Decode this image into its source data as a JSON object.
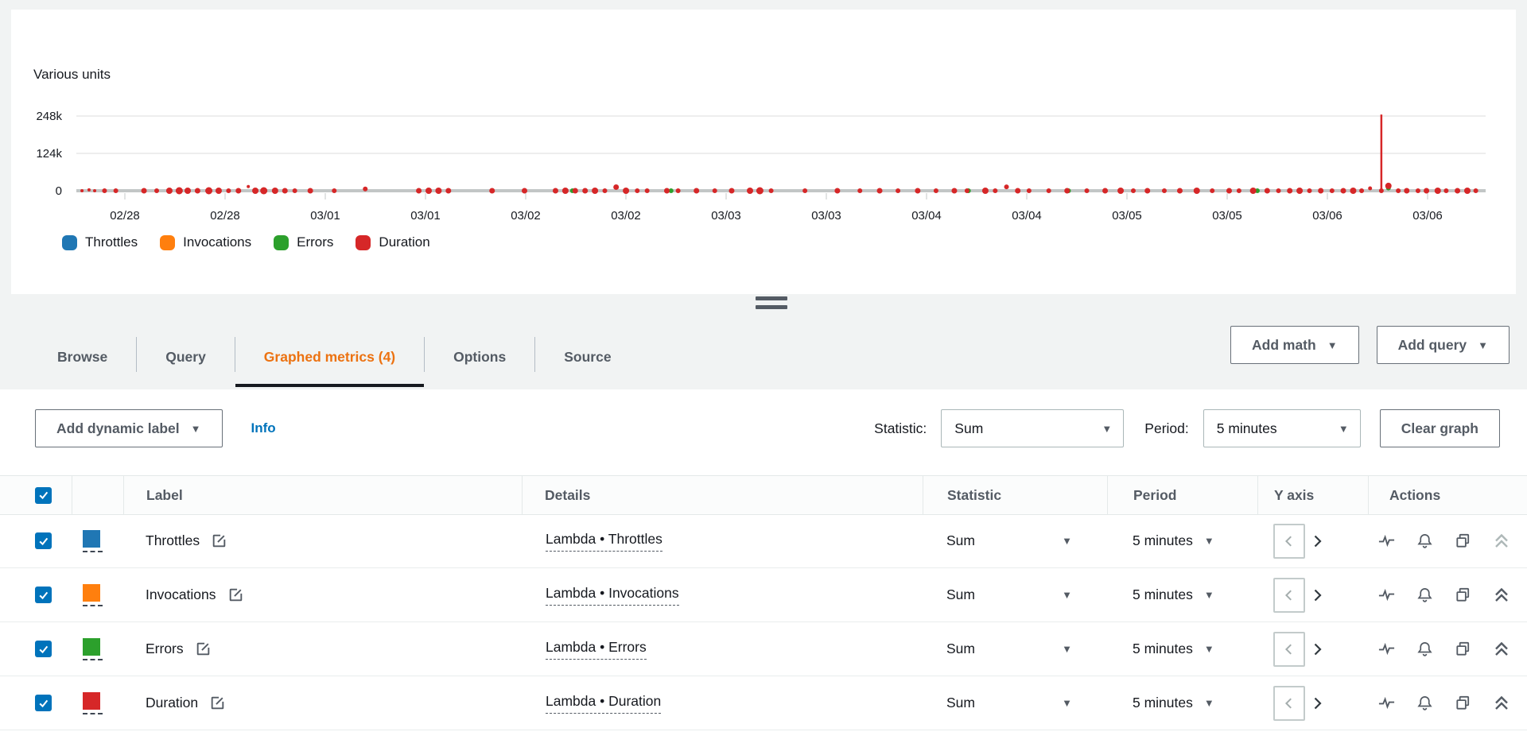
{
  "chart": {
    "units_label": "Various units"
  },
  "chart_data": {
    "type": "scatter",
    "title": "Various units",
    "xlabel": "",
    "ylabel": "",
    "ylim": [
      0,
      260000
    ],
    "grid": true,
    "legend_position": "bottom",
    "y_ticks": [
      {
        "value": 248000,
        "label": "248k"
      },
      {
        "value": 124000,
        "label": "124k"
      },
      {
        "value": 0,
        "label": "0"
      }
    ],
    "x_tick_labels": [
      "02/28",
      "02/28",
      "03/01",
      "03/01",
      "03/02",
      "03/02",
      "03/03",
      "03/03",
      "03/04",
      "03/04",
      "03/05",
      "03/05",
      "03/06",
      "03/06"
    ],
    "series": [
      {
        "name": "Throttles",
        "color": "#2077b4",
        "points": []
      },
      {
        "name": "Invocations",
        "color": "#ff7f0e",
        "points": []
      },
      {
        "name": "Errors",
        "color": "#2ca02c",
        "points": [
          [
            0.352,
            0,
            3
          ],
          [
            0.422,
            0,
            3
          ],
          [
            0.633,
            0,
            3
          ],
          [
            0.704,
            0,
            3
          ],
          [
            0.838,
            0,
            3
          ],
          [
            0.931,
            9000,
            3
          ]
        ]
      },
      {
        "name": "Duration",
        "color": "#d62728",
        "spike": {
          "x": 0.926,
          "value": 253000
        },
        "points": [
          [
            0.004,
            0,
            2
          ],
          [
            0.009,
            3000,
            2
          ],
          [
            0.013,
            0,
            2
          ],
          [
            0.02,
            0,
            3
          ],
          [
            0.028,
            0,
            3
          ],
          [
            0.048,
            0,
            3.5
          ],
          [
            0.057,
            0,
            3
          ],
          [
            0.066,
            0,
            4
          ],
          [
            0.073,
            0,
            4.5
          ],
          [
            0.079,
            0,
            4
          ],
          [
            0.086,
            0,
            3.5
          ],
          [
            0.094,
            0,
            4.5
          ],
          [
            0.101,
            0,
            4
          ],
          [
            0.108,
            0,
            3
          ],
          [
            0.115,
            0,
            3.5
          ],
          [
            0.122,
            14000,
            2
          ],
          [
            0.127,
            0,
            4
          ],
          [
            0.133,
            0,
            4.5
          ],
          [
            0.141,
            0,
            4
          ],
          [
            0.148,
            0,
            3.5
          ],
          [
            0.155,
            0,
            3
          ],
          [
            0.166,
            0,
            3.5
          ],
          [
            0.183,
            0,
            3
          ],
          [
            0.205,
            6000,
            3
          ],
          [
            0.243,
            0,
            3.5
          ],
          [
            0.25,
            0,
            4
          ],
          [
            0.257,
            0,
            4
          ],
          [
            0.264,
            0,
            3.5
          ],
          [
            0.295,
            0,
            3.5
          ],
          [
            0.318,
            0,
            3.5
          ],
          [
            0.34,
            0,
            3.5
          ],
          [
            0.347,
            0,
            4
          ],
          [
            0.354,
            0,
            3.5
          ],
          [
            0.361,
            0,
            3.5
          ],
          [
            0.368,
            0,
            4
          ],
          [
            0.375,
            0,
            3
          ],
          [
            0.383,
            12000,
            3.5
          ],
          [
            0.39,
            0,
            4
          ],
          [
            0.398,
            0,
            3
          ],
          [
            0.405,
            0,
            3
          ],
          [
            0.419,
            0,
            3.5
          ],
          [
            0.427,
            0,
            3
          ],
          [
            0.44,
            0,
            3.5
          ],
          [
            0.453,
            0,
            3
          ],
          [
            0.465,
            0,
            3.5
          ],
          [
            0.478,
            0,
            4
          ],
          [
            0.485,
            0,
            4.5
          ],
          [
            0.493,
            0,
            3
          ],
          [
            0.517,
            0,
            3
          ],
          [
            0.54,
            0,
            3.5
          ],
          [
            0.556,
            0,
            3
          ],
          [
            0.57,
            0,
            3.5
          ],
          [
            0.583,
            0,
            3
          ],
          [
            0.597,
            0,
            3.5
          ],
          [
            0.61,
            0,
            3
          ],
          [
            0.623,
            0,
            3.5
          ],
          [
            0.632,
            0,
            3
          ],
          [
            0.645,
            0,
            4
          ],
          [
            0.652,
            0,
            3
          ],
          [
            0.66,
            13000,
            3
          ],
          [
            0.668,
            0,
            3.5
          ],
          [
            0.676,
            0,
            3
          ],
          [
            0.69,
            0,
            3
          ],
          [
            0.703,
            0,
            3.5
          ],
          [
            0.717,
            0,
            3
          ],
          [
            0.73,
            0,
            3.5
          ],
          [
            0.741,
            0,
            4
          ],
          [
            0.75,
            0,
            3
          ],
          [
            0.76,
            0,
            3.5
          ],
          [
            0.772,
            0,
            3
          ],
          [
            0.783,
            0,
            3.5
          ],
          [
            0.795,
            0,
            4
          ],
          [
            0.806,
            0,
            3
          ],
          [
            0.818,
            0,
            3.5
          ],
          [
            0.825,
            0,
            3
          ],
          [
            0.835,
            0,
            4
          ],
          [
            0.845,
            0,
            3.5
          ],
          [
            0.853,
            0,
            3
          ],
          [
            0.861,
            0,
            3.5
          ],
          [
            0.868,
            0,
            4
          ],
          [
            0.875,
            0,
            3
          ],
          [
            0.883,
            0,
            3.5
          ],
          [
            0.891,
            0,
            3
          ],
          [
            0.899,
            0,
            3.5
          ],
          [
            0.906,
            0,
            4
          ],
          [
            0.912,
            0,
            3
          ],
          [
            0.918,
            8000,
            2.5
          ],
          [
            0.926,
            0,
            3
          ],
          [
            0.931,
            16000,
            4
          ],
          [
            0.938,
            0,
            3
          ],
          [
            0.944,
            0,
            3.5
          ],
          [
            0.952,
            0,
            3
          ],
          [
            0.958,
            0,
            3.5
          ],
          [
            0.966,
            0,
            4
          ],
          [
            0.972,
            0,
            3
          ],
          [
            0.98,
            0,
            3.5
          ],
          [
            0.987,
            0,
            4
          ],
          [
            0.993,
            0,
            3
          ]
        ]
      }
    ]
  },
  "tabs": {
    "items": [
      {
        "label": "Browse",
        "active": false
      },
      {
        "label": "Query",
        "active": false
      },
      {
        "label": "Graphed metrics (4)",
        "active": true
      },
      {
        "label": "Options",
        "active": false
      },
      {
        "label": "Source",
        "active": false
      }
    ]
  },
  "toolbar": {
    "add_math": "Add math",
    "add_query": "Add query"
  },
  "controls": {
    "add_dynamic_label": "Add dynamic label",
    "info": "Info",
    "statistic_label": "Statistic:",
    "statistic_value": "Sum",
    "period_label": "Period:",
    "period_value": "5 minutes",
    "clear_graph": "Clear graph"
  },
  "table": {
    "columns": {
      "label": "Label",
      "details": "Details",
      "statistic": "Statistic",
      "period": "Period",
      "y_axis": "Y axis",
      "actions": "Actions"
    },
    "header_checkbox_checked": true,
    "rows": [
      {
        "checked": true,
        "color": "#2077b4",
        "label": "Throttles",
        "details": "Lambda • Throttles",
        "statistic": "Sum",
        "period": "5 minutes",
        "y_axis": "left",
        "collapse_enabled": false
      },
      {
        "checked": true,
        "color": "#ff7f0e",
        "label": "Invocations",
        "details": "Lambda • Invocations",
        "statistic": "Sum",
        "period": "5 minutes",
        "y_axis": "left",
        "collapse_enabled": true
      },
      {
        "checked": true,
        "color": "#2ca02c",
        "label": "Errors",
        "details": "Lambda • Errors",
        "statistic": "Sum",
        "period": "5 minutes",
        "y_axis": "left",
        "collapse_enabled": true
      },
      {
        "checked": true,
        "color": "#d62728",
        "label": "Duration",
        "details": "Lambda • Duration",
        "statistic": "Sum",
        "period": "5 minutes",
        "y_axis": "left",
        "collapse_enabled": true
      }
    ]
  }
}
